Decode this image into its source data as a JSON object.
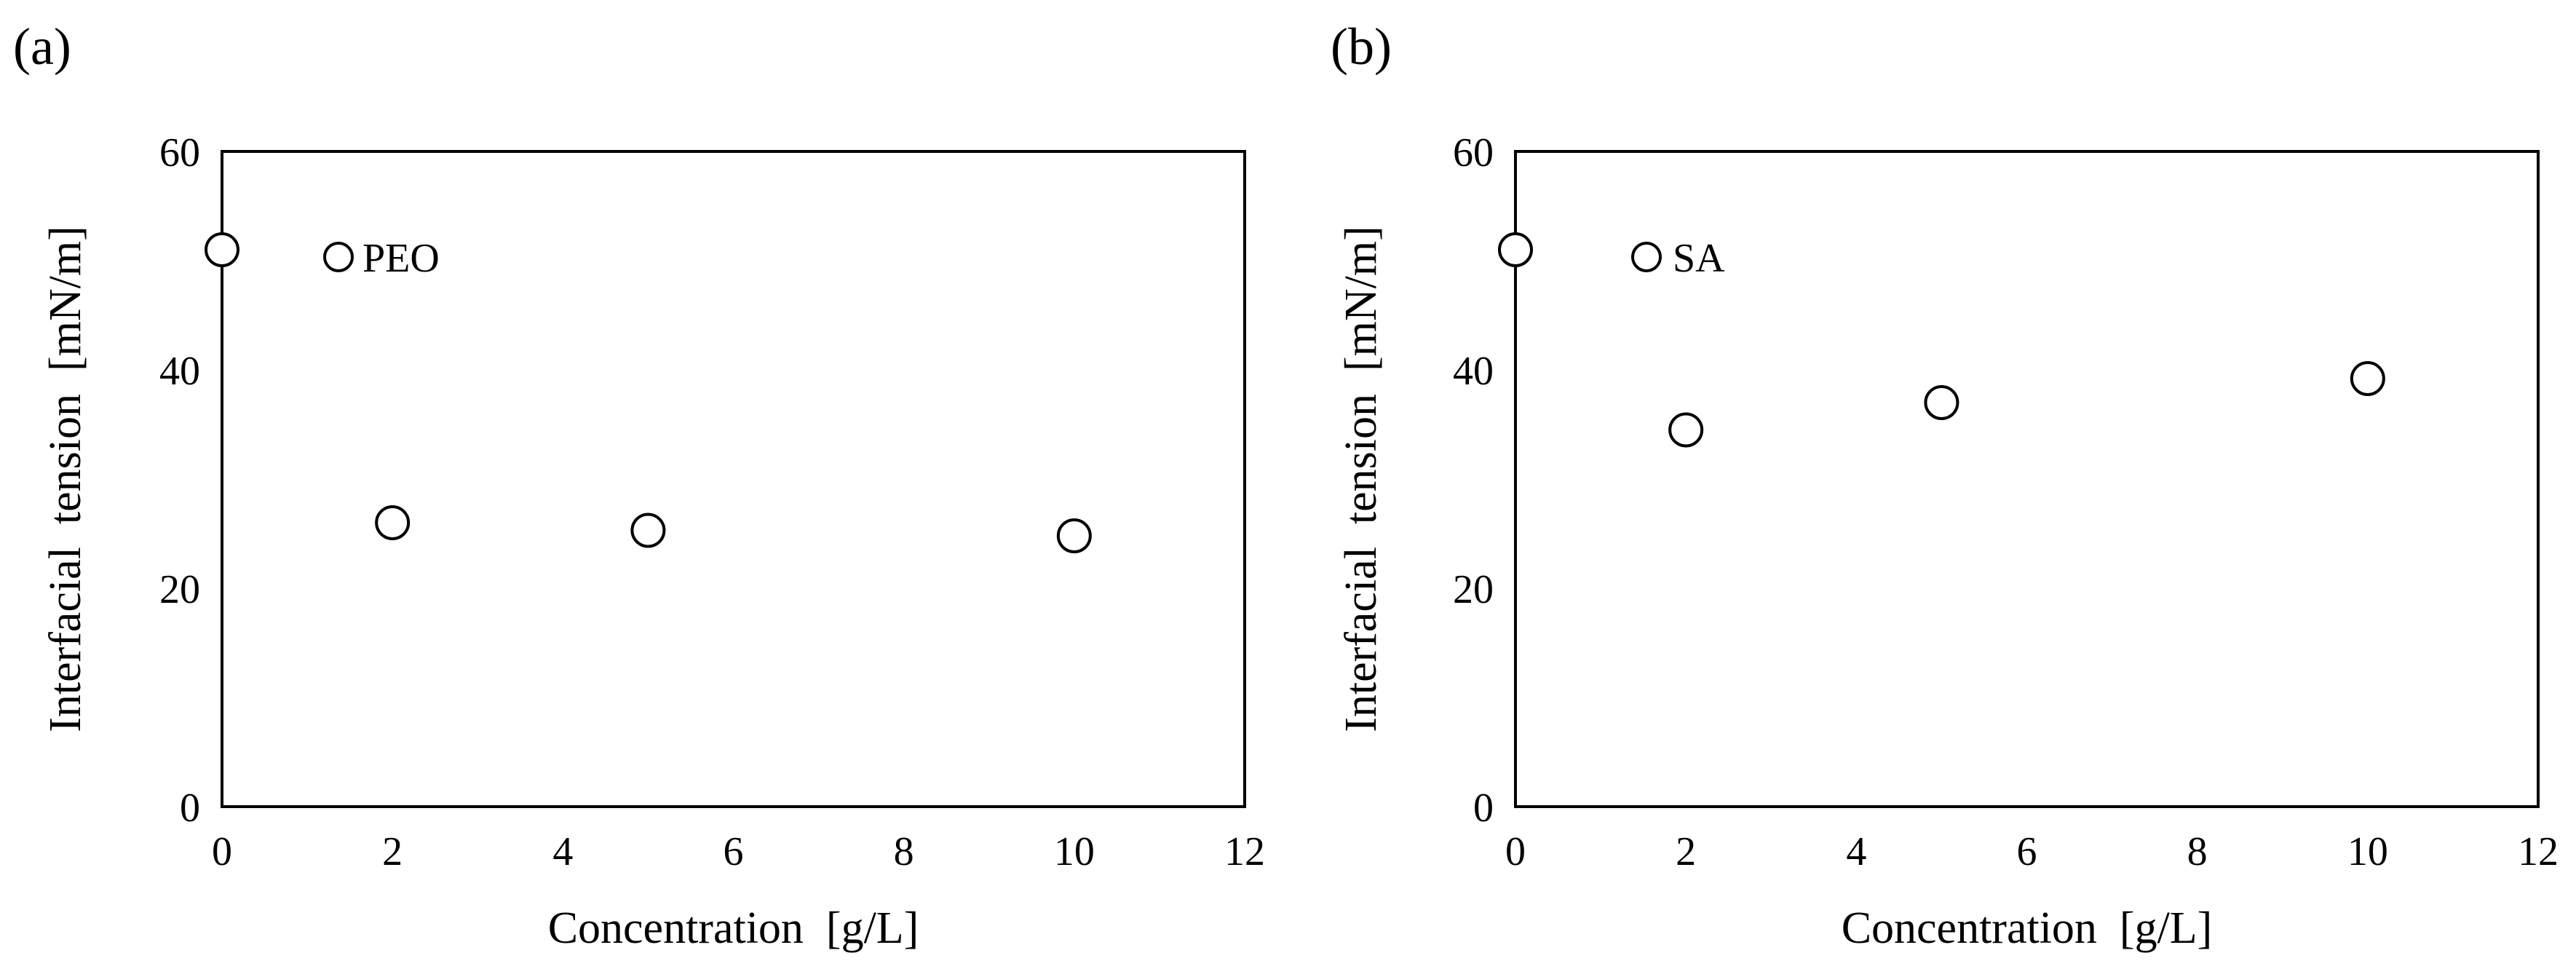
{
  "chart_data": [
    {
      "type": "scatter",
      "panel_label": "(a)",
      "xlabel": "Concentration  [g/L]",
      "ylabel": "Interfacial  tension  [mN/m]",
      "xlim": [
        0,
        12
      ],
      "ylim": [
        0,
        60
      ],
      "x_ticks": [
        "0",
        "2",
        "4",
        "6",
        "8",
        "10",
        "12"
      ],
      "y_ticks": [
        "0",
        "20",
        "40",
        "60"
      ],
      "grid": false,
      "legend_position": "top-left",
      "marker": "open-circle",
      "series": [
        {
          "name": "PEO",
          "x": [
            0,
            2,
            5,
            10
          ],
          "y": [
            51.0,
            26.0,
            25.3,
            24.8
          ]
        }
      ]
    },
    {
      "type": "scatter",
      "panel_label": "(b)",
      "xlabel": "Concentration  [g/L]",
      "ylabel": "Interfacial  tension  [mN/m]",
      "xlim": [
        0,
        12
      ],
      "ylim": [
        0,
        60
      ],
      "x_ticks": [
        "0",
        "2",
        "4",
        "6",
        "8",
        "10",
        "12"
      ],
      "y_ticks": [
        "0",
        "20",
        "40",
        "60"
      ],
      "grid": false,
      "legend_position": "top-left",
      "marker": "open-circle",
      "series": [
        {
          "name": "SA",
          "x": [
            0,
            2,
            5,
            10
          ],
          "y": [
            51.0,
            34.5,
            37.0,
            39.2
          ]
        }
      ]
    }
  ]
}
